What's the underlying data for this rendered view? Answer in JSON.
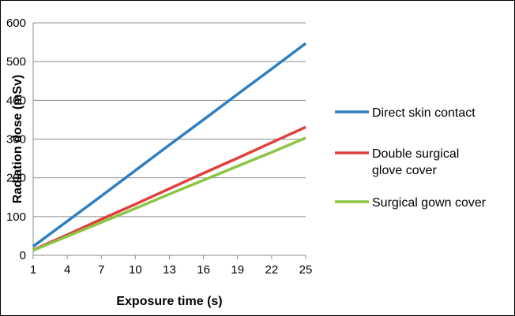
{
  "chart_data": {
    "type": "line",
    "title": "",
    "xlabel": "Exposure time (s)",
    "ylabel": "Radiation dose (mSv)",
    "x": [
      1,
      4,
      7,
      10,
      13,
      16,
      19,
      22,
      25
    ],
    "xlim": [
      1,
      25
    ],
    "ylim": [
      0,
      600
    ],
    "yticks": [
      0,
      100,
      200,
      300,
      400,
      500,
      600
    ],
    "grid": true,
    "legend_position": "right",
    "series": [
      {
        "name": "Direct skin contact",
        "color": "#2e7fc0",
        "values": [
          23,
          88,
          153,
          219,
          285,
          350,
          416,
          481,
          547
        ]
      },
      {
        "name": "Double surgical glove cover",
        "color": "#e0403c",
        "values": [
          14,
          53,
          93,
          132,
          172,
          212,
          251,
          291,
          331
        ]
      },
      {
        "name": "Surgical gown cover",
        "color": "#8cc544",
        "values": [
          13,
          49,
          85,
          121,
          158,
          194,
          230,
          266,
          303
        ]
      }
    ]
  }
}
